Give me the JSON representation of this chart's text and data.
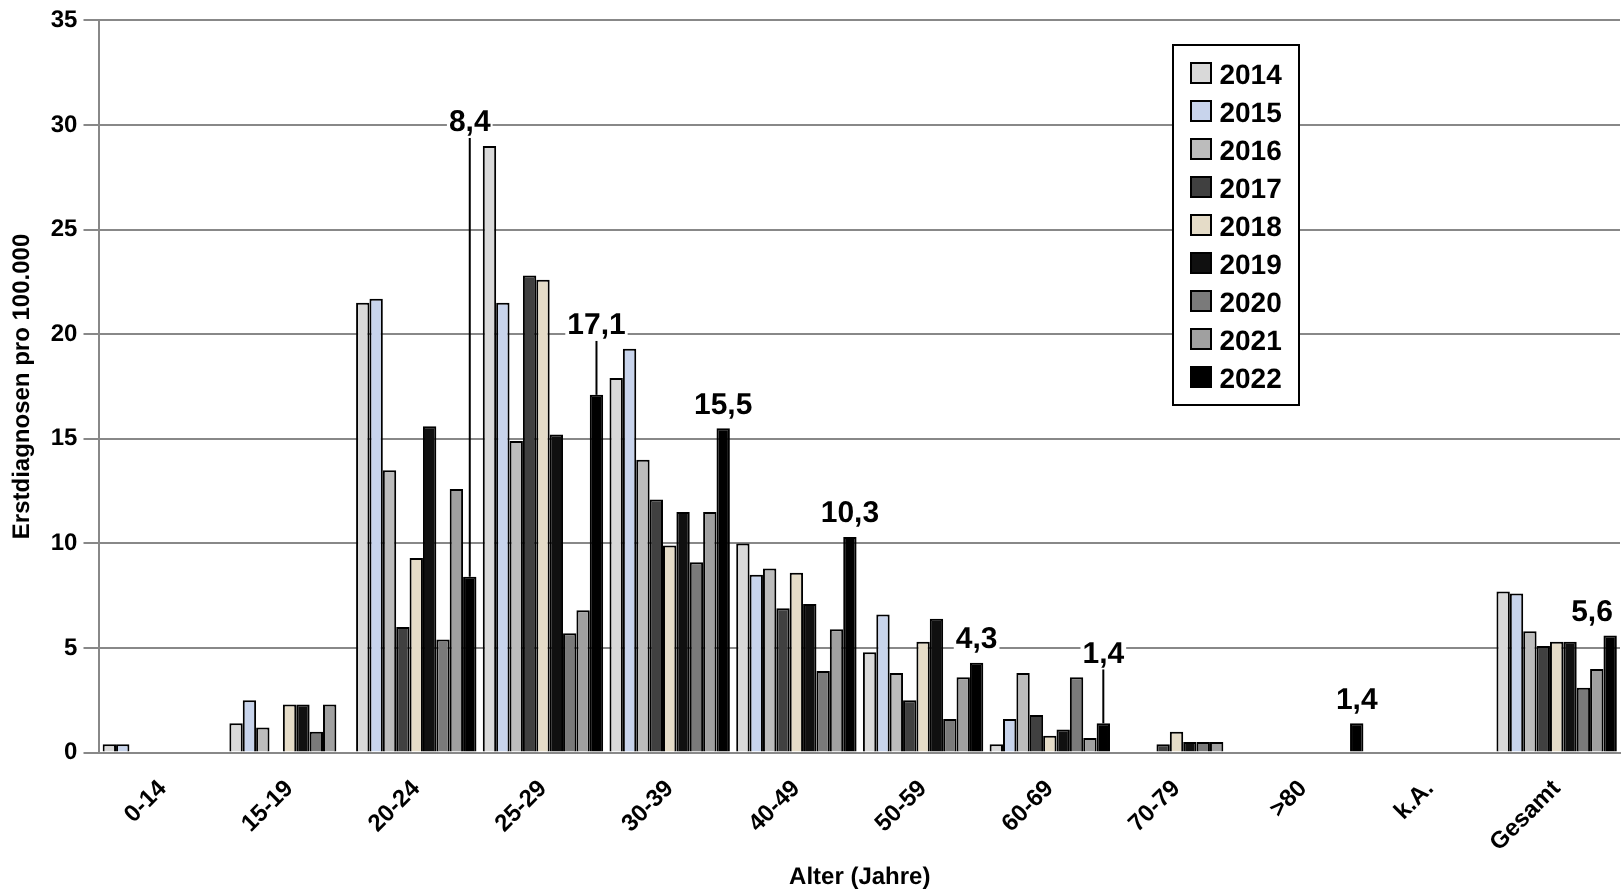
{
  "chart_data": {
    "type": "bar",
    "xlabel": "Alter (Jahre)",
    "ylabel": "Erstdiagnosen pro 100.000",
    "categories": [
      "0-14",
      "15-19",
      "20-24",
      "25-29",
      "30-39",
      "40-49",
      "50-59",
      "60-69",
      "70-79",
      ">80",
      "k.A.",
      "Gesamt"
    ],
    "series": [
      {
        "name": "2014",
        "color": "#d9d9d9",
        "values": [
          0.4,
          1.4,
          21.5,
          29.0,
          17.9,
          10.0,
          4.8,
          0.4,
          0,
          0,
          0,
          7.7
        ]
      },
      {
        "name": "2015",
        "color": "#c8d4ec",
        "values": [
          0.4,
          2.5,
          21.7,
          21.5,
          19.3,
          8.5,
          6.6,
          1.6,
          0,
          0,
          0,
          7.6
        ]
      },
      {
        "name": "2016",
        "color": "#bcbcbc",
        "values": [
          0,
          1.2,
          13.5,
          14.9,
          14.0,
          8.8,
          3.8,
          3.8,
          0,
          0,
          0,
          5.8
        ]
      },
      {
        "name": "2017",
        "color": "#404040",
        "values": [
          0,
          0,
          6.0,
          22.8,
          12.1,
          6.9,
          2.5,
          1.8,
          0.4,
          0,
          0,
          5.1
        ]
      },
      {
        "name": "2018",
        "color": "#e5dcc8",
        "values": [
          0,
          2.3,
          9.3,
          22.6,
          9.9,
          8.6,
          5.3,
          0.8,
          1.0,
          0,
          0,
          5.3
        ]
      },
      {
        "name": "2019",
        "color": "#101010",
        "values": [
          0,
          2.3,
          15.6,
          15.2,
          11.5,
          7.1,
          6.4,
          1.1,
          0.5,
          0,
          0,
          5.3
        ]
      },
      {
        "name": "2020",
        "color": "#7a7a7a",
        "values": [
          0,
          1.0,
          5.4,
          5.7,
          9.1,
          3.9,
          1.6,
          3.6,
          0.5,
          0,
          0,
          3.1
        ]
      },
      {
        "name": "2021",
        "color": "#a0a0a0",
        "values": [
          0,
          2.3,
          12.6,
          6.8,
          11.5,
          5.9,
          3.6,
          0.7,
          0.5,
          0,
          0,
          4.0
        ]
      },
      {
        "name": "2022",
        "color": "#000000",
        "values": [
          0,
          0,
          8.4,
          17.1,
          15.5,
          10.3,
          4.3,
          1.4,
          0,
          1.4,
          0,
          5.6
        ],
        "value_labels": [
          null,
          null,
          "8,4",
          "17,1",
          "15,5",
          "10,3",
          "4,3",
          "1,4",
          null,
          "1,4",
          null,
          "5,6"
        ]
      }
    ],
    "ylim": [
      0,
      35
    ],
    "yticks": [
      0,
      5,
      10,
      15,
      20,
      25,
      30,
      35
    ],
    "grid": "y",
    "legend": "top right"
  }
}
